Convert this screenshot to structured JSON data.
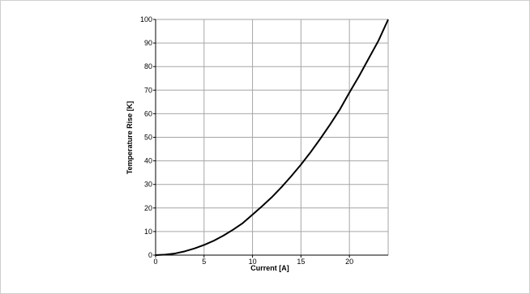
{
  "chart_data": {
    "type": "line",
    "title": "",
    "xlabel": "Current [A]",
    "ylabel": "Temperature Rise [K]",
    "xlim": [
      0,
      24
    ],
    "ylim": [
      0,
      100
    ],
    "x_ticks": [
      0,
      5,
      10,
      15,
      20
    ],
    "y_ticks": [
      0,
      10,
      20,
      30,
      40,
      50,
      60,
      70,
      80,
      90,
      100
    ],
    "grid": true,
    "legend": "none",
    "line_color": "#000000",
    "grid_color": "#a6a6a6",
    "series": [
      {
        "x": [
          0,
          1,
          2,
          3,
          4,
          5,
          6,
          7,
          8,
          9,
          10,
          11,
          12,
          13,
          14,
          15,
          16,
          17,
          18,
          19,
          20,
          21,
          22,
          23,
          24
        ],
        "y": [
          0,
          0.2,
          0.7,
          1.6,
          2.8,
          4.3,
          6.1,
          8.3,
          10.8,
          13.6,
          17.2,
          20.8,
          24.6,
          28.9,
          33.5,
          38.4,
          43.7,
          49.4,
          55.4,
          61.7,
          69.0,
          76.0,
          83.5,
          91.0,
          100.0
        ]
      }
    ]
  }
}
